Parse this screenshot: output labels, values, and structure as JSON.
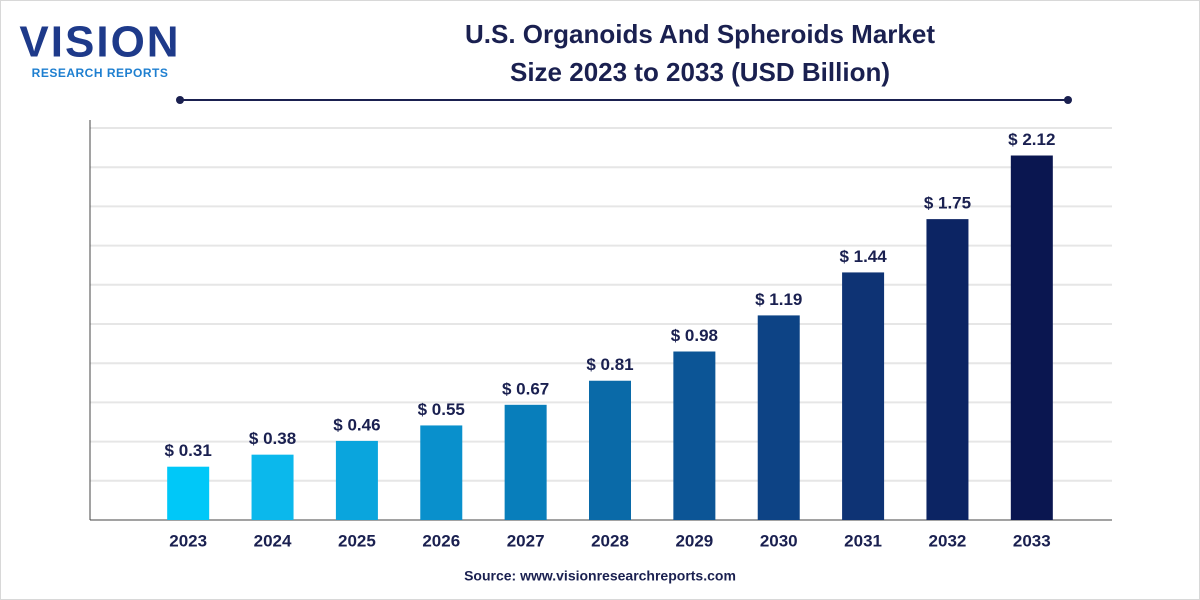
{
  "chart_data": {
    "type": "bar",
    "logo": {
      "name": "VISION",
      "tagline": "RESEARCH REPORTS"
    },
    "title": [
      "U.S. Organoids And Spheroids Market",
      "Size 2023 to 2033 (USD Billion)"
    ],
    "source": "Source: www.visionresearchreports.com",
    "categories": [
      "2023",
      "2024",
      "2025",
      "2026",
      "2027",
      "2028",
      "2029",
      "2030",
      "2031",
      "2032",
      "2033"
    ],
    "values": [
      0.31,
      0.38,
      0.46,
      0.55,
      0.67,
      0.81,
      0.98,
      1.19,
      1.44,
      1.75,
      2.12
    ],
    "value_labels": [
      "$ 0.31",
      "$ 0.38",
      "$ 0.46",
      "$ 0.55",
      "$ 0.67",
      "$ 0.81",
      "$ 0.98",
      "$ 1.19",
      "$ 1.44",
      "$ 1.75",
      "$ 2.12"
    ],
    "colors": [
      "#00c8f8",
      "#0bb8ec",
      "#0aa5dd",
      "#0990cc",
      "#087ebb",
      "#0a6aa8",
      "#0c5596",
      "#0d4385",
      "#0e3374",
      "#0c2463",
      "#0a1650"
    ],
    "ylim": [
      0,
      2.28
    ],
    "grid": true
  }
}
